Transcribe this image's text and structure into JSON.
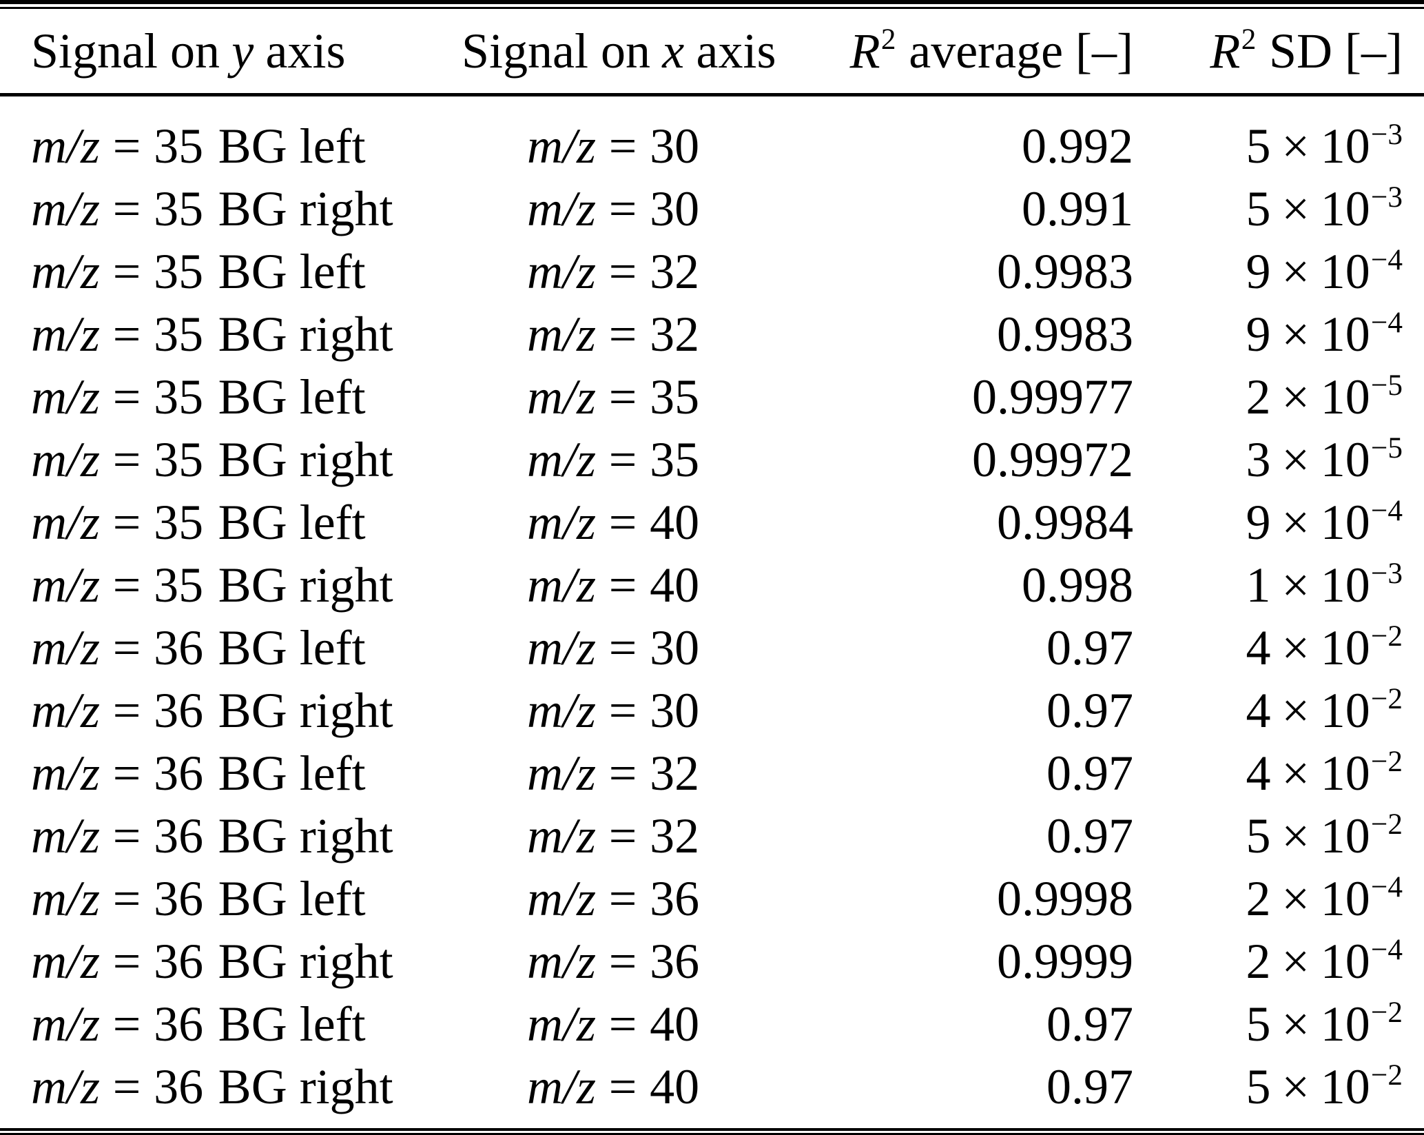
{
  "table": {
    "symbols": {
      "mz": "m/z",
      "equals": "=",
      "times": "×",
      "base": "10"
    },
    "headers": {
      "col1": {
        "pre": "Signal on",
        "var": "y",
        "post": "axis"
      },
      "col2": {
        "pre": "Signal on",
        "var": "x",
        "post": "axis"
      },
      "col3": {
        "var": "R",
        "sup": "2",
        "post": "average [–]"
      },
      "col4": {
        "var": "R",
        "sup": "2",
        "post": "SD [–]"
      }
    },
    "rows": [
      {
        "y_mz": "35",
        "y_bg": "BG left",
        "x_mz": "30",
        "avg": "0.992",
        "sd_coeff": "5",
        "sd_exp": "−3"
      },
      {
        "y_mz": "35",
        "y_bg": "BG right",
        "x_mz": "30",
        "avg": "0.991",
        "sd_coeff": "5",
        "sd_exp": "−3"
      },
      {
        "y_mz": "35",
        "y_bg": "BG left",
        "x_mz": "32",
        "avg": "0.9983",
        "sd_coeff": "9",
        "sd_exp": "−4"
      },
      {
        "y_mz": "35",
        "y_bg": "BG right",
        "x_mz": "32",
        "avg": "0.9983",
        "sd_coeff": "9",
        "sd_exp": "−4"
      },
      {
        "y_mz": "35",
        "y_bg": "BG left",
        "x_mz": "35",
        "avg": "0.99977",
        "sd_coeff": "2",
        "sd_exp": "−5"
      },
      {
        "y_mz": "35",
        "y_bg": "BG right",
        "x_mz": "35",
        "avg": "0.99972",
        "sd_coeff": "3",
        "sd_exp": "−5"
      },
      {
        "y_mz": "35",
        "y_bg": "BG left",
        "x_mz": "40",
        "avg": "0.9984",
        "sd_coeff": "9",
        "sd_exp": "−4"
      },
      {
        "y_mz": "35",
        "y_bg": "BG right",
        "x_mz": "40",
        "avg": "0.998",
        "sd_coeff": "1",
        "sd_exp": "−3"
      },
      {
        "y_mz": "36",
        "y_bg": "BG left",
        "x_mz": "30",
        "avg": "0.97",
        "sd_coeff": "4",
        "sd_exp": "−2"
      },
      {
        "y_mz": "36",
        "y_bg": "BG right",
        "x_mz": "30",
        "avg": "0.97",
        "sd_coeff": "4",
        "sd_exp": "−2"
      },
      {
        "y_mz": "36",
        "y_bg": "BG left",
        "x_mz": "32",
        "avg": "0.97",
        "sd_coeff": "4",
        "sd_exp": "−2"
      },
      {
        "y_mz": "36",
        "y_bg": "BG right",
        "x_mz": "32",
        "avg": "0.97",
        "sd_coeff": "5",
        "sd_exp": "−2"
      },
      {
        "y_mz": "36",
        "y_bg": "BG left",
        "x_mz": "36",
        "avg": "0.9998",
        "sd_coeff": "2",
        "sd_exp": "−4"
      },
      {
        "y_mz": "36",
        "y_bg": "BG right",
        "x_mz": "36",
        "avg": "0.9999",
        "sd_coeff": "2",
        "sd_exp": "−4"
      },
      {
        "y_mz": "36",
        "y_bg": "BG left",
        "x_mz": "40",
        "avg": "0.97",
        "sd_coeff": "5",
        "sd_exp": "−2"
      },
      {
        "y_mz": "36",
        "y_bg": "BG right",
        "x_mz": "40",
        "avg": "0.97",
        "sd_coeff": "5",
        "sd_exp": "−2"
      }
    ]
  }
}
